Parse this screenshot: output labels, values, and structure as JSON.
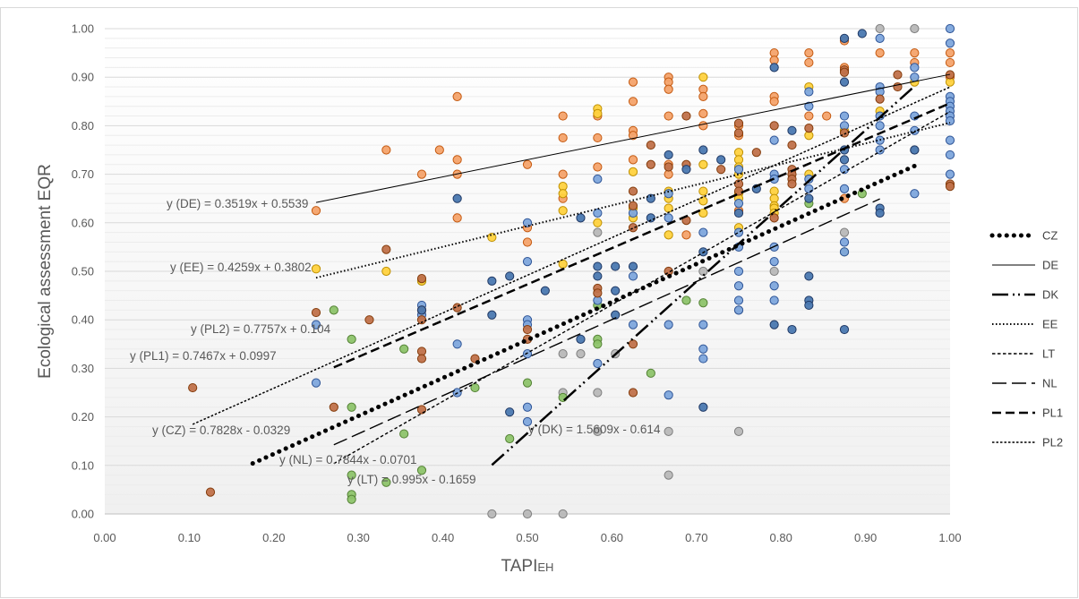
{
  "chart_data": {
    "type": "scatter",
    "xlabel_main": "TAPI",
    "xlabel_sub": "EH",
    "ylabel": "Ecological assessment EQR",
    "xlim": [
      0,
      1
    ],
    "ylim": [
      0,
      1
    ],
    "xticks": [
      "0.00",
      "0.10",
      "0.20",
      "0.30",
      "0.40",
      "0.50",
      "0.60",
      "0.70",
      "0.80",
      "0.90",
      "1.00"
    ],
    "yticks": [
      "0.00",
      "0.10",
      "0.20",
      "0.30",
      "0.40",
      "0.50",
      "0.60",
      "0.70",
      "0.80",
      "0.90",
      "1.00"
    ],
    "grid": "horizontal",
    "legend_position": "right",
    "point_colors": {
      "orange": "#F4A36B",
      "blue": "#7EA6DC",
      "brown": "#C0714A",
      "yellow": "#FFD23F",
      "green": "#8DC36A",
      "gray": "#B8B8B8",
      "navy": "#4A78B0"
    },
    "points": {
      "orange": [
        [
          0.25,
          0.625
        ],
        [
          0.333,
          0.75
        ],
        [
          0.375,
          0.7
        ],
        [
          0.396,
          0.75
        ],
        [
          0.417,
          0.86
        ],
        [
          0.417,
          0.7
        ],
        [
          0.417,
          0.73
        ],
        [
          0.417,
          0.61
        ],
        [
          0.5,
          0.72
        ],
        [
          0.5,
          0.59
        ],
        [
          0.5,
          0.56
        ],
        [
          0.542,
          0.82
        ],
        [
          0.542,
          0.775
        ],
        [
          0.542,
          0.7
        ],
        [
          0.542,
          0.65
        ],
        [
          0.583,
          0.82
        ],
        [
          0.583,
          0.775
        ],
        [
          0.583,
          0.715
        ],
        [
          0.625,
          0.89
        ],
        [
          0.625,
          0.85
        ],
        [
          0.625,
          0.79
        ],
        [
          0.625,
          0.78
        ],
        [
          0.625,
          0.73
        ],
        [
          0.667,
          0.9
        ],
        [
          0.667,
          0.89
        ],
        [
          0.667,
          0.875
        ],
        [
          0.667,
          0.82
        ],
        [
          0.667,
          0.72
        ],
        [
          0.667,
          0.7
        ],
        [
          0.708,
          0.875
        ],
        [
          0.708,
          0.86
        ],
        [
          0.708,
          0.825
        ],
        [
          0.708,
          0.8
        ],
        [
          0.75,
          0.8
        ],
        [
          0.75,
          0.78
        ],
        [
          0.792,
          0.95
        ],
        [
          0.792,
          0.935
        ],
        [
          0.792,
          0.86
        ],
        [
          0.792,
          0.85
        ],
        [
          0.833,
          0.95
        ],
        [
          0.833,
          0.93
        ],
        [
          0.833,
          0.82
        ],
        [
          0.854,
          0.82
        ],
        [
          0.875,
          0.975
        ],
        [
          0.875,
          0.92
        ],
        [
          0.875,
          0.65
        ],
        [
          0.917,
          0.95
        ],
        [
          0.958,
          0.95
        ],
        [
          0.958,
          0.93
        ],
        [
          1.0,
          0.95
        ],
        [
          1.0,
          0.93
        ],
        [
          1.0,
          0.9
        ],
        [
          0.688,
          0.575
        ],
        [
          0.75,
          0.625
        ]
      ],
      "blue": [
        [
          0.25,
          0.39
        ],
        [
          0.25,
          0.27
        ],
        [
          0.375,
          0.43
        ],
        [
          0.375,
          0.41
        ],
        [
          0.417,
          0.35
        ],
        [
          0.417,
          0.25
        ],
        [
          0.5,
          0.4
        ],
        [
          0.5,
          0.39
        ],
        [
          0.5,
          0.33
        ],
        [
          0.5,
          0.22
        ],
        [
          0.5,
          0.19
        ],
        [
          0.5,
          0.6
        ],
        [
          0.5,
          0.52
        ],
        [
          0.583,
          0.69
        ],
        [
          0.583,
          0.62
        ],
        [
          0.583,
          0.44
        ],
        [
          0.583,
          0.31
        ],
        [
          0.625,
          0.62
        ],
        [
          0.625,
          0.49
        ],
        [
          0.625,
          0.39
        ],
        [
          0.667,
          0.66
        ],
        [
          0.667,
          0.61
        ],
        [
          0.708,
          0.58
        ],
        [
          0.708,
          0.39
        ],
        [
          0.75,
          0.71
        ],
        [
          0.75,
          0.64
        ],
        [
          0.75,
          0.58
        ],
        [
          0.75,
          0.55
        ],
        [
          0.75,
          0.5
        ],
        [
          0.75,
          0.47
        ],
        [
          0.75,
          0.44
        ],
        [
          0.75,
          0.42
        ],
        [
          0.792,
          0.77
        ],
        [
          0.792,
          0.7
        ],
        [
          0.792,
          0.69
        ],
        [
          0.792,
          0.55
        ],
        [
          0.792,
          0.52
        ],
        [
          0.792,
          0.47
        ],
        [
          0.792,
          0.44
        ],
        [
          0.833,
          0.87
        ],
        [
          0.833,
          0.84
        ],
        [
          0.833,
          0.69
        ],
        [
          0.833,
          0.67
        ],
        [
          0.875,
          0.82
        ],
        [
          0.875,
          0.8
        ],
        [
          0.875,
          0.71
        ],
        [
          0.875,
          0.67
        ],
        [
          0.875,
          0.56
        ],
        [
          0.875,
          0.54
        ],
        [
          0.917,
          0.98
        ],
        [
          0.917,
          0.88
        ],
        [
          0.917,
          0.87
        ],
        [
          0.917,
          0.82
        ],
        [
          0.917,
          0.8
        ],
        [
          0.917,
          0.77
        ],
        [
          0.917,
          0.75
        ],
        [
          0.958,
          0.92
        ],
        [
          0.958,
          0.9
        ],
        [
          0.958,
          0.82
        ],
        [
          0.958,
          0.79
        ],
        [
          0.958,
          0.66
        ],
        [
          1.0,
          1.0
        ],
        [
          1.0,
          0.97
        ],
        [
          1.0,
          0.86
        ],
        [
          1.0,
          0.85
        ],
        [
          1.0,
          0.84
        ],
        [
          1.0,
          0.83
        ],
        [
          1.0,
          0.82
        ],
        [
          1.0,
          0.81
        ],
        [
          1.0,
          0.77
        ],
        [
          1.0,
          0.74
        ],
        [
          1.0,
          0.7
        ],
        [
          0.667,
          0.39
        ],
        [
          0.667,
          0.245
        ],
        [
          0.708,
          0.34
        ],
        [
          0.708,
          0.32
        ]
      ],
      "navy": [
        [
          0.375,
          0.42
        ],
        [
          0.417,
          0.65
        ],
        [
          0.458,
          0.48
        ],
        [
          0.458,
          0.41
        ],
        [
          0.479,
          0.49
        ],
        [
          0.479,
          0.21
        ],
        [
          0.521,
          0.46
        ],
        [
          0.563,
          0.61
        ],
        [
          0.563,
          0.36
        ],
        [
          0.583,
          0.51
        ],
        [
          0.583,
          0.49
        ],
        [
          0.604,
          0.51
        ],
        [
          0.604,
          0.46
        ],
        [
          0.604,
          0.41
        ],
        [
          0.625,
          0.51
        ],
        [
          0.646,
          0.65
        ],
        [
          0.646,
          0.61
        ],
        [
          0.688,
          0.71
        ],
        [
          0.708,
          0.75
        ],
        [
          0.708,
          0.54
        ],
        [
          0.708,
          0.22
        ],
        [
          0.729,
          0.73
        ],
        [
          0.75,
          0.62
        ],
        [
          0.771,
          0.67
        ],
        [
          0.792,
          0.92
        ],
        [
          0.792,
          0.39
        ],
        [
          0.813,
          0.79
        ],
        [
          0.813,
          0.38
        ],
        [
          0.833,
          0.65
        ],
        [
          0.833,
          0.49
        ],
        [
          0.833,
          0.44
        ],
        [
          0.833,
          0.43
        ],
        [
          0.875,
          0.98
        ],
        [
          0.875,
          0.89
        ],
        [
          0.875,
          0.75
        ],
        [
          0.875,
          0.73
        ],
        [
          0.875,
          0.38
        ],
        [
          0.896,
          0.99
        ],
        [
          0.917,
          0.63
        ],
        [
          0.917,
          0.62
        ],
        [
          0.958,
          0.75
        ],
        [
          0.667,
          0.74
        ]
      ],
      "brown": [
        [
          0.104,
          0.26
        ],
        [
          0.125,
          0.045
        ],
        [
          0.25,
          0.415
        ],
        [
          0.271,
          0.22
        ],
        [
          0.313,
          0.4
        ],
        [
          0.333,
          0.545
        ],
        [
          0.375,
          0.485
        ],
        [
          0.375,
          0.42
        ],
        [
          0.375,
          0.4
        ],
        [
          0.375,
          0.335
        ],
        [
          0.375,
          0.32
        ],
        [
          0.375,
          0.215
        ],
        [
          0.417,
          0.425
        ],
        [
          0.438,
          0.32
        ],
        [
          0.5,
          0.38
        ],
        [
          0.5,
          0.36
        ],
        [
          0.583,
          0.465
        ],
        [
          0.583,
          0.455
        ],
        [
          0.625,
          0.665
        ],
        [
          0.625,
          0.635
        ],
        [
          0.625,
          0.59
        ],
        [
          0.625,
          0.35
        ],
        [
          0.625,
          0.25
        ],
        [
          0.646,
          0.76
        ],
        [
          0.646,
          0.72
        ],
        [
          0.667,
          0.715
        ],
        [
          0.667,
          0.5
        ],
        [
          0.688,
          0.82
        ],
        [
          0.688,
          0.72
        ],
        [
          0.688,
          0.605
        ],
        [
          0.729,
          0.71
        ],
        [
          0.75,
          0.805
        ],
        [
          0.75,
          0.785
        ],
        [
          0.75,
          0.68
        ],
        [
          0.75,
          0.665
        ],
        [
          0.771,
          0.745
        ],
        [
          0.792,
          0.8
        ],
        [
          0.792,
          0.61
        ],
        [
          0.813,
          0.76
        ],
        [
          0.813,
          0.71
        ],
        [
          0.813,
          0.7
        ],
        [
          0.813,
          0.69
        ],
        [
          0.813,
          0.68
        ],
        [
          0.833,
          0.795
        ],
        [
          0.875,
          0.915
        ],
        [
          0.875,
          0.91
        ],
        [
          0.875,
          0.785
        ],
        [
          0.917,
          0.855
        ],
        [
          0.938,
          0.905
        ],
        [
          0.938,
          0.88
        ],
        [
          1.0,
          0.905
        ],
        [
          1.0,
          0.68
        ],
        [
          1.0,
          0.675
        ]
      ],
      "yellow": [
        [
          0.25,
          0.505
        ],
        [
          0.333,
          0.5
        ],
        [
          0.375,
          0.48
        ],
        [
          0.458,
          0.57
        ],
        [
          0.542,
          0.675
        ],
        [
          0.542,
          0.66
        ],
        [
          0.542,
          0.625
        ],
        [
          0.542,
          0.515
        ],
        [
          0.583,
          0.835
        ],
        [
          0.583,
          0.825
        ],
        [
          0.583,
          0.6
        ],
        [
          0.625,
          0.705
        ],
        [
          0.625,
          0.63
        ],
        [
          0.625,
          0.61
        ],
        [
          0.667,
          0.665
        ],
        [
          0.667,
          0.65
        ],
        [
          0.667,
          0.63
        ],
        [
          0.667,
          0.575
        ],
        [
          0.708,
          0.9
        ],
        [
          0.708,
          0.72
        ],
        [
          0.708,
          0.665
        ],
        [
          0.708,
          0.645
        ],
        [
          0.708,
          0.62
        ],
        [
          0.75,
          0.745
        ],
        [
          0.75,
          0.73
        ],
        [
          0.75,
          0.715
        ],
        [
          0.75,
          0.7
        ],
        [
          0.75,
          0.66
        ],
        [
          0.75,
          0.65
        ],
        [
          0.75,
          0.59
        ],
        [
          0.792,
          0.665
        ],
        [
          0.792,
          0.65
        ],
        [
          0.792,
          0.635
        ],
        [
          0.792,
          0.63
        ],
        [
          0.792,
          0.62
        ],
        [
          0.833,
          0.88
        ],
        [
          0.833,
          0.78
        ],
        [
          0.833,
          0.7
        ],
        [
          0.875,
          0.79
        ],
        [
          0.917,
          0.83
        ],
        [
          0.958,
          0.89
        ],
        [
          1.0,
          0.89
        ]
      ],
      "green": [
        [
          0.271,
          0.42
        ],
        [
          0.292,
          0.36
        ],
        [
          0.292,
          0.22
        ],
        [
          0.292,
          0.08
        ],
        [
          0.292,
          0.04
        ],
        [
          0.292,
          0.03
        ],
        [
          0.333,
          0.065
        ],
        [
          0.354,
          0.34
        ],
        [
          0.354,
          0.165
        ],
        [
          0.375,
          0.48
        ],
        [
          0.375,
          0.09
        ],
        [
          0.438,
          0.26
        ],
        [
          0.479,
          0.155
        ],
        [
          0.5,
          0.27
        ],
        [
          0.542,
          0.24
        ],
        [
          0.583,
          0.43
        ],
        [
          0.583,
          0.36
        ],
        [
          0.583,
          0.35
        ],
        [
          0.646,
          0.29
        ],
        [
          0.688,
          0.44
        ],
        [
          0.708,
          0.435
        ],
        [
          0.833,
          0.64
        ],
        [
          0.875,
          0.54
        ],
        [
          0.896,
          0.66
        ]
      ],
      "gray": [
        [
          0.458,
          0.0
        ],
        [
          0.5,
          0.0
        ],
        [
          0.542,
          0.0
        ],
        [
          0.542,
          0.33
        ],
        [
          0.542,
          0.25
        ],
        [
          0.563,
          0.33
        ],
        [
          0.583,
          0.58
        ],
        [
          0.583,
          0.25
        ],
        [
          0.583,
          0.17
        ],
        [
          0.604,
          0.33
        ],
        [
          0.667,
          0.17
        ],
        [
          0.667,
          0.08
        ],
        [
          0.708,
          0.5
        ],
        [
          0.75,
          0.42
        ],
        [
          0.75,
          0.17
        ],
        [
          0.792,
          0.5
        ],
        [
          0.875,
          0.58
        ],
        [
          0.917,
          1.0
        ],
        [
          0.958,
          1.0
        ],
        [
          0.958,
          0.75
        ]
      ]
    },
    "series": [
      {
        "name": "CZ",
        "slope": 0.7828,
        "intercept": -0.0329,
        "x_range": [
          0.175,
          0.958
        ],
        "dash": "dot",
        "width": 5
      },
      {
        "name": "DE",
        "slope": 0.3519,
        "intercept": 0.5539,
        "x_range": [
          0.25,
          1.0
        ],
        "dash": "solid",
        "width": 1
      },
      {
        "name": "DK",
        "slope": 1.5609,
        "intercept": -0.614,
        "x_range": [
          0.458,
          0.958
        ],
        "dash": "dashdotdot",
        "width": 2.5
      },
      {
        "name": "EE",
        "slope": 0.4259,
        "intercept": 0.3802,
        "x_range": [
          0.25,
          1.0
        ],
        "dash": "dotted",
        "width": 2
      },
      {
        "name": "LT",
        "slope": 0.995,
        "intercept": -0.1659,
        "x_range": [
          0.271,
          1.0
        ],
        "dash": "shortdash",
        "width": 1.4
      },
      {
        "name": "NL",
        "slope": 0.7844,
        "intercept": -0.0701,
        "x_range": [
          0.271,
          0.917
        ],
        "dash": "longdash",
        "width": 1.4
      },
      {
        "name": "PL1",
        "slope": 0.7467,
        "intercept": 0.0997,
        "x_range": [
          0.271,
          1.0
        ],
        "dash": "dash",
        "width": 2.5
      },
      {
        "name": "PL2",
        "slope": 0.7757,
        "intercept": 0.104,
        "x_range": [
          0.104,
          1.0
        ],
        "dash": "fine",
        "width": 1.5
      }
    ],
    "equations": [
      {
        "text": "y (DE) = 0.3519x + 0.5539"
      },
      {
        "text": "y (EE) = 0.4259x + 0.3802"
      },
      {
        "text": "y (PL2) = 0.7757x + 0.104"
      },
      {
        "text": "y (PL1)  = 0.7467x + 0.0997"
      },
      {
        "text": "y (CZ) = 0.7828x - 0.0329"
      },
      {
        "text": "y (NL) = 0.7844x - 0.0701"
      },
      {
        "text": "y (LT) = 0.995x - 0.1659"
      },
      {
        "text": "y (DK) = 1.5609x - 0.614"
      }
    ]
  }
}
